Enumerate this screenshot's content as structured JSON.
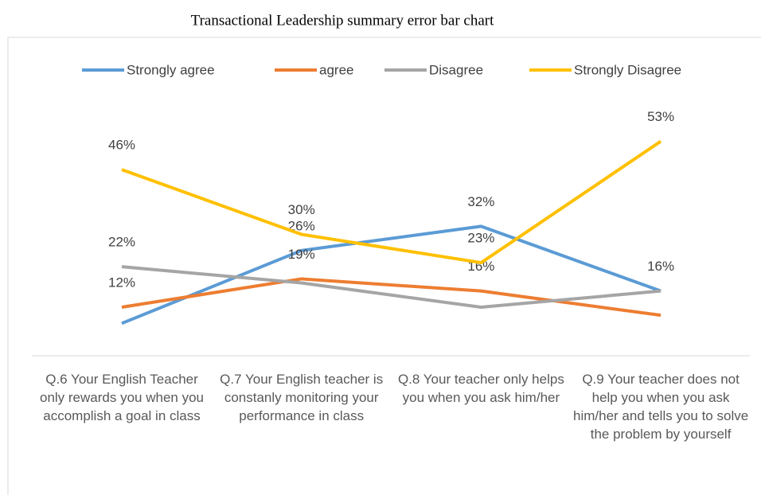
{
  "chart_data": {
    "type": "line",
    "title": "Transactional Leadership summary error bar chart",
    "categories": [
      "Q.6 Your English Teacher only rewards you when you accomplish a goal in class",
      "Q.7 Your English teacher is constanly monitoring your performance in class",
      "Q.8 Your teacher only helps you when you ask him/her",
      "Q.9 Your teacher does not help you when you ask him/her and tells you to solve the problem by yourself"
    ],
    "series": [
      {
        "name": "Strongly agree",
        "color": "#5b9bd5",
        "values": [
          8,
          26,
          32,
          16
        ],
        "value_labels": [
          null,
          "26%",
          "32%",
          "16%"
        ]
      },
      {
        "name": "agree",
        "color": "#ed7d31",
        "values": [
          12,
          19,
          16,
          10
        ],
        "value_labels": [
          "12%",
          "19%",
          "16%",
          null
        ]
      },
      {
        "name": "Disagree",
        "color": "#a5a5a5",
        "values": [
          22,
          18,
          12,
          16
        ],
        "value_labels": [
          "22%",
          null,
          null,
          null
        ]
      },
      {
        "name": "Strongly Disagree",
        "color": "#ffc000",
        "values": [
          46,
          30,
          23,
          53
        ],
        "value_labels": [
          "46%",
          "30%",
          "23%",
          "53%"
        ]
      }
    ],
    "ylim": [
      0,
      60
    ],
    "legend": "top"
  }
}
